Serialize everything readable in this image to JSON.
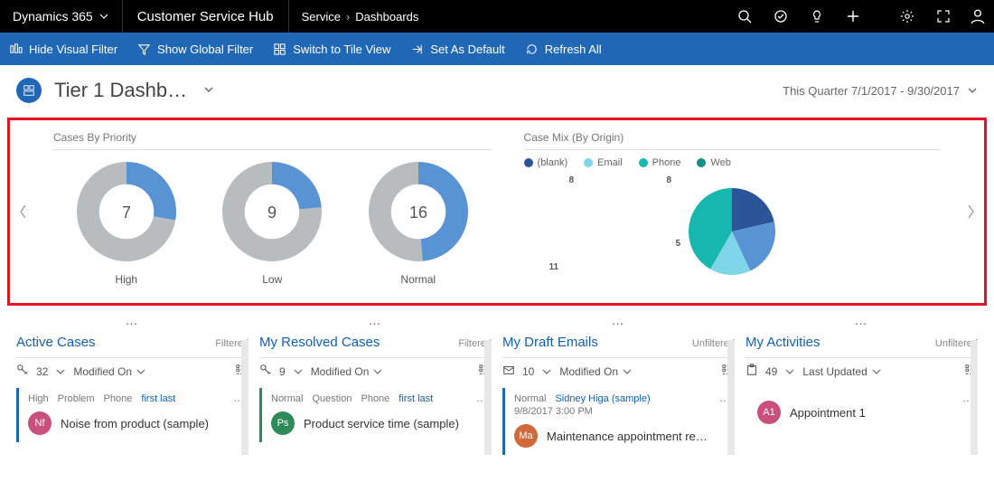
{
  "topbar": {
    "brand": "Dynamics 365",
    "hub": "Customer Service Hub",
    "crumb1": "Service",
    "crumb2": "Dashboards"
  },
  "commands": {
    "hide": "Hide Visual Filter",
    "global": "Show Global Filter",
    "tile": "Switch to Tile View",
    "default": "Set As Default",
    "refresh": "Refresh All"
  },
  "title": "Tier 1 Dashb…",
  "date_range": "This Quarter 7/1/2017 - 9/30/2017",
  "panel_priority": {
    "title": "Cases By Priority",
    "colors": {
      "seg1": "#5893d4",
      "seg2": "#b8bcbf",
      "bg": "#ffffff"
    },
    "items": [
      {
        "label": "High",
        "value": "7",
        "seg1_deg": 100,
        "radius": 55
      },
      {
        "label": "Low",
        "value": "9",
        "seg1_deg": 85,
        "radius": 55
      },
      {
        "label": "Normal",
        "value": "16",
        "seg1_deg": 175,
        "radius": 55
      }
    ]
  },
  "panel_origin": {
    "title": "Case Mix (By Origin)",
    "legend": [
      {
        "label": "(blank)",
        "color": "#2a5599"
      },
      {
        "label": "Email",
        "color": "#7fd6e8"
      },
      {
        "label": "Phone",
        "color": "#17b7b0"
      },
      {
        "label": "Web",
        "color": "#0e8f88"
      }
    ],
    "slices": [
      {
        "value": "8",
        "color": "#2a5599",
        "start": -90,
        "end": -13
      },
      {
        "value": "8",
        "color": "#5893d4",
        "start": -13,
        "end": 65
      },
      {
        "value": "5",
        "color": "#7fd6e8",
        "start": 65,
        "end": 120
      },
      {
        "value": "11",
        "color": "#17b7b0",
        "start": 120,
        "end": 270
      }
    ],
    "labels": {
      "tl": "8",
      "tr": "8",
      "r": "5",
      "bl": "11"
    }
  },
  "streams": [
    {
      "name": "Active Cases",
      "filter": "Filtered",
      "icon": "key",
      "count": "32",
      "sort": "Modified On",
      "card": {
        "tags": [
          "High",
          "Problem",
          "Phone"
        ],
        "link": "first last",
        "avatar": "Nf",
        "avatar_color": "#c94f7c",
        "title": "Noise from product (sample)",
        "border": "#2067b6"
      }
    },
    {
      "name": "My Resolved Cases",
      "filter": "Filtered",
      "icon": "key",
      "count": "9",
      "sort": "Modified On",
      "card": {
        "tags": [
          "Normal",
          "Question",
          "Phone"
        ],
        "link": "first last",
        "avatar": "Ps",
        "avatar_color": "#2e8b57",
        "title": "Product service time (sample)",
        "border": "#2e8b57"
      }
    },
    {
      "name": "My Draft Emails",
      "filter": "Unfiltered",
      "icon": "mail",
      "count": "10",
      "sort": "Modified On",
      "card": {
        "tags": [
          "Normal"
        ],
        "link": "Sidney Higa (sample)",
        "sub": "9/8/2017 3:00 PM",
        "avatar": "Ma",
        "avatar_color": "#d06a3a",
        "title": "Maintenance appointment re…",
        "border": "#2067b6"
      }
    },
    {
      "name": "My Activities",
      "filter": "Unfiltered",
      "icon": "clip",
      "count": "49",
      "sort": "Last Updated",
      "card": {
        "tags": [],
        "link": "",
        "avatar": "A1",
        "avatar_color": "#c94f7c",
        "title": "Appointment 1",
        "border": "#ffffff"
      }
    }
  ]
}
